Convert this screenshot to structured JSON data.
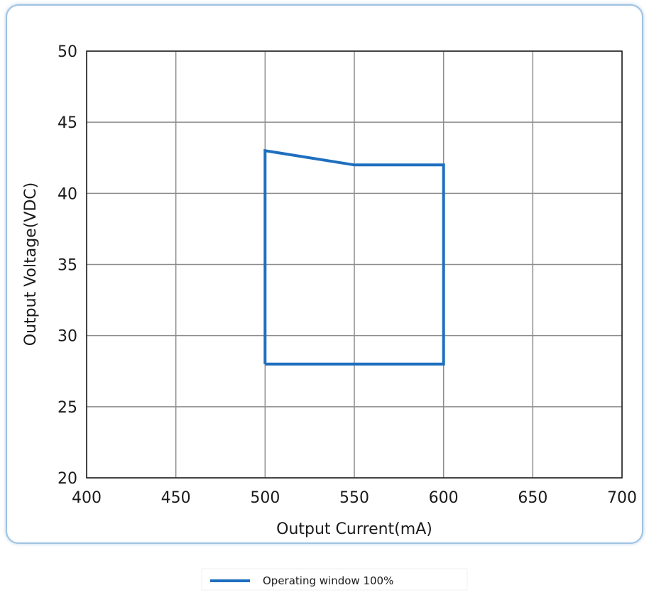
{
  "chart_data": {
    "type": "line",
    "xlabel": "Output Current(mA)",
    "ylabel": "Output Voltage(VDC)",
    "xlim": [
      400,
      700
    ],
    "ylim": [
      20,
      50
    ],
    "x_ticks": [
      400,
      450,
      500,
      550,
      600,
      650,
      700
    ],
    "y_ticks": [
      20,
      25,
      30,
      35,
      40,
      45,
      50
    ],
    "grid": true,
    "legend_position": "bottom-center",
    "series": [
      {
        "name": "Operating window 100%",
        "color": "#1f6fbf",
        "points": [
          {
            "x": 500,
            "y": 28
          },
          {
            "x": 500,
            "y": 43
          },
          {
            "x": 550,
            "y": 42
          },
          {
            "x": 600,
            "y": 42
          },
          {
            "x": 600,
            "y": 28
          },
          {
            "x": 500,
            "y": 28
          }
        ]
      }
    ]
  }
}
